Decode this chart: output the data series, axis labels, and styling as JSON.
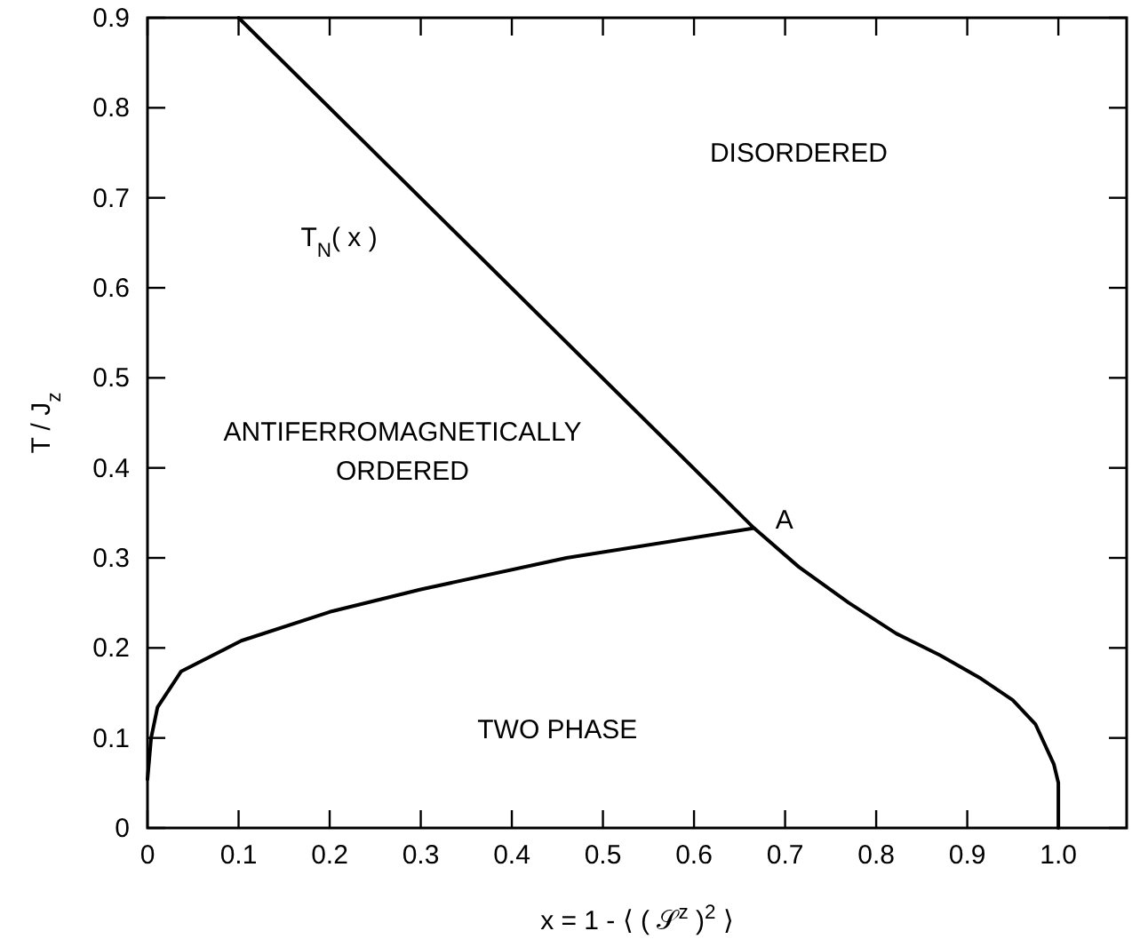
{
  "chart_data": {
    "type": "line",
    "xlabel": "x = 1 - ⟨ ( 𝒮$^{z}$ )$^{2}$ ⟩",
    "ylabel": "T / J$_{z}$",
    "xlim": [
      0,
      1.075
    ],
    "ylim": [
      0,
      0.9
    ],
    "xticks": [
      0,
      0.1,
      0.2,
      0.3,
      0.4,
      0.5,
      0.6,
      0.7,
      0.8,
      0.9,
      {
        "value": 1,
        "label": "1.0"
      }
    ],
    "yticks": [
      0,
      0.1,
      0.2,
      0.3,
      0.4,
      0.5,
      0.6,
      0.7,
      0.8,
      0.9
    ],
    "grid": false,
    "marker": "none",
    "line_style": "solid",
    "series": [
      {
        "name": "T$_{N}$( x )",
        "color": "#000000",
        "x": [
          0.1,
          0.666,
          0.715,
          0.77,
          0.822,
          0.87,
          0.915,
          0.95,
          0.975,
          0.995,
          1.0,
          1.0
        ],
        "values": [
          0.9,
          0.333,
          0.29,
          0.25,
          0.216,
          0.192,
          0.166,
          0.142,
          0.115,
          0.071,
          0.05,
          0
        ]
      },
      {
        "color": "#000000",
        "x": [
          0,
          0.004,
          0.011,
          0.037,
          0.103,
          0.2,
          0.3,
          0.46,
          0.666
        ],
        "values": [
          0.054,
          0.1,
          0.134,
          0.174,
          0.208,
          0.24,
          0.265,
          0.3,
          0.333
        ]
      }
    ],
    "annotations": [
      "DISORDERED",
      "ANTIFERROMAGNETICALLY\nORDERED",
      "TWO PHASE",
      {
        "text": "A",
        "x": 0.666,
        "y": 0.333
      }
    ]
  }
}
